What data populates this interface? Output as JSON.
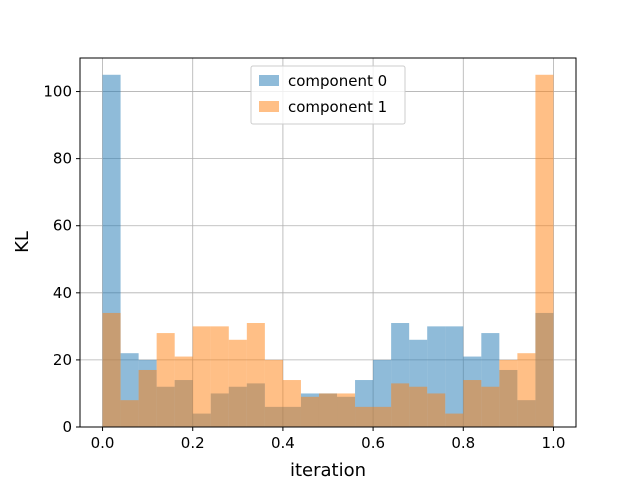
{
  "chart_data": {
    "type": "bar",
    "title": "",
    "xlabel": "iteration",
    "ylabel": "KL",
    "xlim": [
      -0.05,
      1.05
    ],
    "ylim": [
      0,
      110
    ],
    "grid": true,
    "legend_placement": "upper-center",
    "bin_edges": [
      0.0,
      0.04,
      0.08,
      0.12,
      0.16,
      0.2,
      0.24,
      0.28,
      0.32,
      0.36,
      0.4,
      0.44,
      0.48,
      0.52,
      0.56,
      0.6,
      0.64,
      0.68,
      0.72,
      0.76,
      0.8,
      0.84,
      0.88,
      0.92,
      0.96,
      1.0
    ],
    "x_ticks": [
      0.0,
      0.2,
      0.4,
      0.6,
      0.8,
      1.0
    ],
    "x_tick_labels": [
      "0.0",
      "0.2",
      "0.4",
      "0.6",
      "0.8",
      "1.0"
    ],
    "y_ticks": [
      0,
      20,
      40,
      60,
      80,
      100
    ],
    "y_tick_labels": [
      "0",
      "20",
      "40",
      "60",
      "80",
      "100"
    ],
    "series": [
      {
        "name": "component 0",
        "color": "#1f77b4",
        "values": [
          105,
          22,
          20,
          12,
          14,
          4,
          10,
          12,
          13,
          6,
          6,
          10,
          10,
          9,
          14,
          20,
          31,
          26,
          30,
          30,
          21,
          28,
          17,
          8,
          34
        ]
      },
      {
        "name": "component 1",
        "color": "#ff7f0e",
        "values": [
          34,
          8,
          17,
          28,
          21,
          30,
          30,
          26,
          31,
          20,
          14,
          9,
          10,
          10,
          6,
          6,
          13,
          12,
          10,
          4,
          14,
          12,
          20,
          22,
          105
        ]
      }
    ]
  }
}
